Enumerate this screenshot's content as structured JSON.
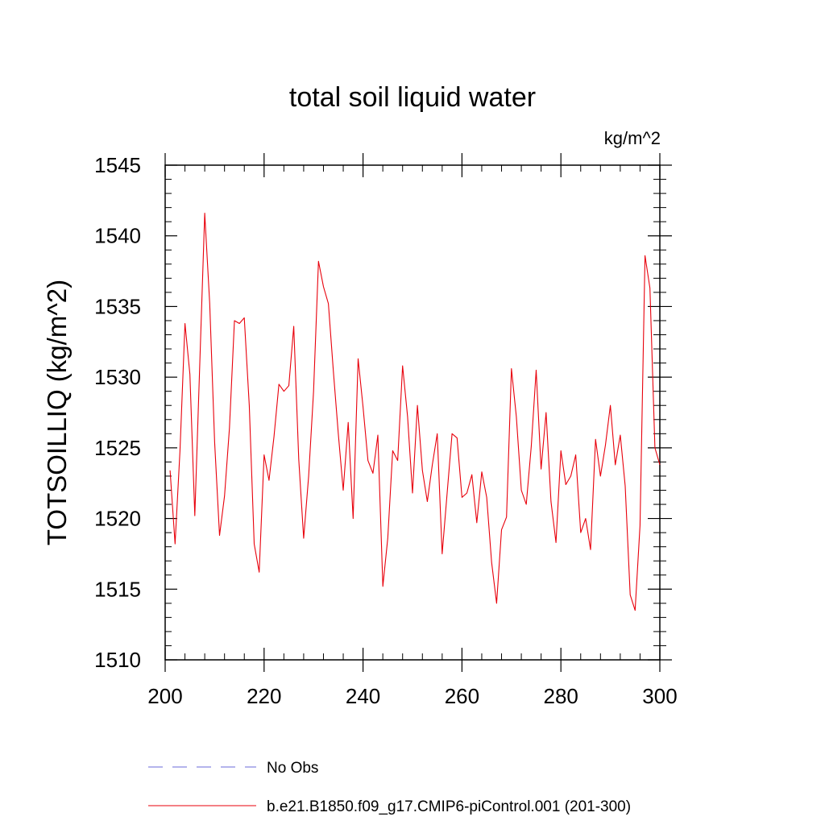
{
  "chart_data": {
    "type": "line",
    "title": "total soil liquid water",
    "units_label": "kg/m^2",
    "ylabel": "TOTSOILLIQ  (kg/m^2)",
    "xlabel": "",
    "xlim": [
      200,
      300
    ],
    "ylim": [
      1510,
      1545
    ],
    "xticks": [
      200,
      220,
      240,
      260,
      280,
      300
    ],
    "yticks": [
      1510,
      1515,
      1520,
      1525,
      1530,
      1535,
      1540,
      1545
    ],
    "x_minor_step": 4,
    "y_minor_step": 1,
    "grid": false,
    "series": [
      {
        "name": "b.e21.B1850.f09_g17.CMIP6-piControl.001 (201-300)",
        "color": "#e8000b",
        "style": "solid",
        "x": [
          201,
          202,
          203,
          204,
          205,
          206,
          207,
          208,
          209,
          210,
          211,
          212,
          213,
          214,
          215,
          216,
          217,
          218,
          219,
          220,
          221,
          222,
          223,
          224,
          225,
          226,
          227,
          228,
          229,
          230,
          231,
          232,
          233,
          234,
          235,
          236,
          237,
          238,
          239,
          240,
          241,
          242,
          243,
          244,
          245,
          246,
          247,
          248,
          249,
          250,
          251,
          252,
          253,
          254,
          255,
          256,
          257,
          258,
          259,
          260,
          261,
          262,
          263,
          264,
          265,
          266,
          267,
          268,
          269,
          270,
          271,
          272,
          273,
          274,
          275,
          276,
          277,
          278,
          279,
          280,
          281,
          282,
          283,
          284,
          285,
          286,
          287,
          288,
          289,
          290,
          291,
          292,
          293,
          294,
          295,
          296,
          297,
          298,
          299,
          300
        ],
        "values": [
          1523.4,
          1518.2,
          1524.8,
          1533.8,
          1530.2,
          1520.2,
          1531.0,
          1541.6,
          1535.2,
          1525.4,
          1518.8,
          1521.6,
          1526.4,
          1534.0,
          1533.8,
          1534.2,
          1528.0,
          1518.2,
          1516.2,
          1524.5,
          1522.7,
          1525.8,
          1529.5,
          1529.0,
          1529.4,
          1533.6,
          1524.2,
          1518.6,
          1523.0,
          1529.0,
          1538.2,
          1536.4,
          1535.2,
          1530.4,
          1526.0,
          1522.0,
          1526.8,
          1520.0,
          1531.3,
          1527.9,
          1524.1,
          1523.2,
          1525.9,
          1515.2,
          1518.6,
          1524.8,
          1524.1,
          1530.8,
          1527.2,
          1521.8,
          1528.0,
          1523.4,
          1521.2,
          1523.8,
          1526.0,
          1517.5,
          1521.8,
          1526.0,
          1525.7,
          1521.5,
          1521.8,
          1523.1,
          1519.7,
          1523.3,
          1521.5,
          1516.9,
          1514.0,
          1519.2,
          1520.1,
          1530.6,
          1527.2,
          1522.0,
          1521.0,
          1525.1,
          1530.5,
          1523.5,
          1527.5,
          1521.2,
          1518.3,
          1524.8,
          1522.4,
          1523.0,
          1524.5,
          1519.0,
          1520.0,
          1517.8,
          1525.6,
          1523.0,
          1525.2,
          1528.0,
          1523.8,
          1525.9,
          1522.3,
          1514.6,
          1513.5,
          1519.5,
          1538.6,
          1536.3,
          1525.0,
          1523.8
        ]
      }
    ],
    "legend": [
      {
        "label": "No Obs",
        "color": "#6a6ad8",
        "style": "dashed"
      },
      {
        "label": "b.e21.B1850.f09_g17.CMIP6-piControl.001 (201-300)",
        "color": "#e8000b",
        "style": "solid"
      }
    ]
  }
}
